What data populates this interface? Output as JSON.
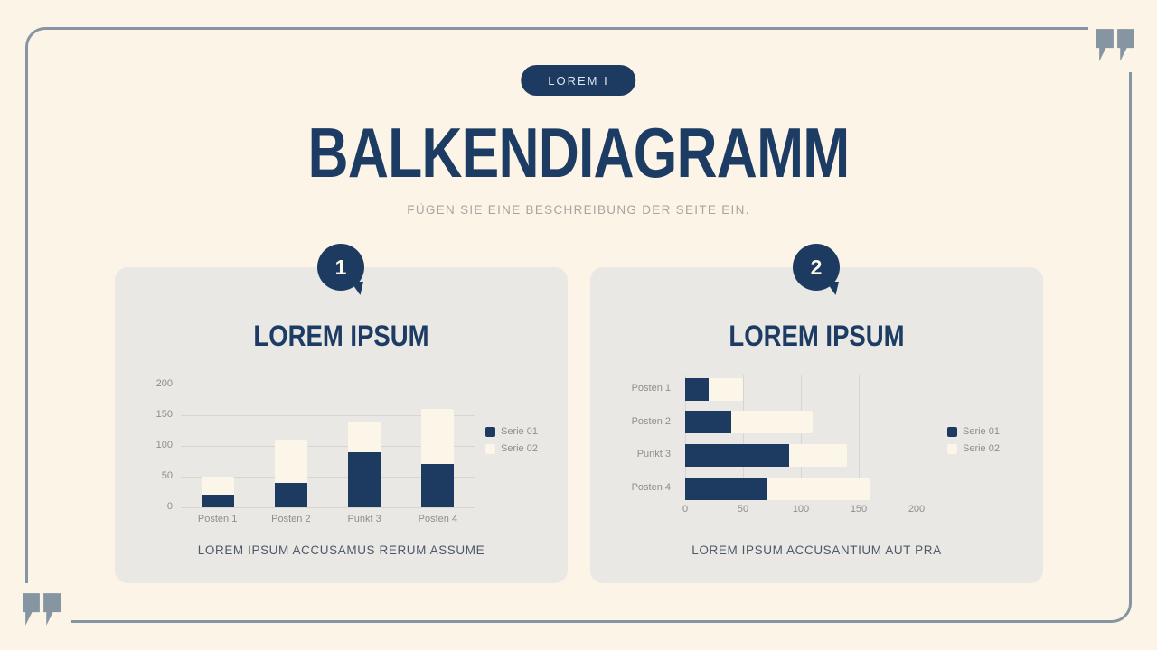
{
  "header": {
    "badge": "LOREM I",
    "title": "BALKENDIAGRAMM",
    "subtitle": "FÜGEN SIE EINE BESCHREIBUNG DER SEITE EIN."
  },
  "cards": [
    {
      "number": "1",
      "title": "LOREM IPSUM",
      "caption": "LOREM IPSUM ACCUSAMUS RERUM ASSUME"
    },
    {
      "number": "2",
      "title": "LOREM IPSUM",
      "caption": "LOREM IPSUM ACCUSANTIUM AUT PRA"
    }
  ],
  "colors": {
    "navy": "#1d3b60",
    "cream": "#fbf6e8",
    "card_bg": "#e9e8e4",
    "page_bg": "#fcf5e7",
    "frame_gray_blue": "#8695a2",
    "gridline": "#d7d5d1",
    "axis_text": "#8f8e8b"
  },
  "chart_data": [
    {
      "type": "bar",
      "orientation": "vertical",
      "stacked": true,
      "title": "LOREM IPSUM",
      "categories": [
        "Posten 1",
        "Posten 2",
        "Punkt 3",
        "Posten 4"
      ],
      "series": [
        {
          "name": "Serie 01",
          "color_key": "navy",
          "values": [
            20,
            40,
            90,
            70
          ]
        },
        {
          "name": "Serie 02",
          "color_key": "cream",
          "values": [
            30,
            70,
            50,
            90
          ]
        }
      ],
      "value_axis_ticks": [
        0,
        50,
        100,
        150,
        200
      ],
      "value_axis_range": [
        0,
        200
      ],
      "grid": true,
      "legend_position": "right"
    },
    {
      "type": "bar",
      "orientation": "horizontal",
      "stacked": true,
      "title": "LOREM IPSUM",
      "categories": [
        "Posten 1",
        "Posten 2",
        "Punkt 3",
        "Posten 4"
      ],
      "series": [
        {
          "name": "Serie 01",
          "color_key": "navy",
          "values": [
            20,
            40,
            90,
            70
          ]
        },
        {
          "name": "Serie 02",
          "color_key": "cream",
          "values": [
            30,
            70,
            50,
            90
          ]
        }
      ],
      "value_axis_ticks": [
        0,
        50,
        100,
        150,
        200
      ],
      "value_axis_range": [
        0,
        200
      ],
      "grid": true,
      "legend_position": "right"
    }
  ]
}
